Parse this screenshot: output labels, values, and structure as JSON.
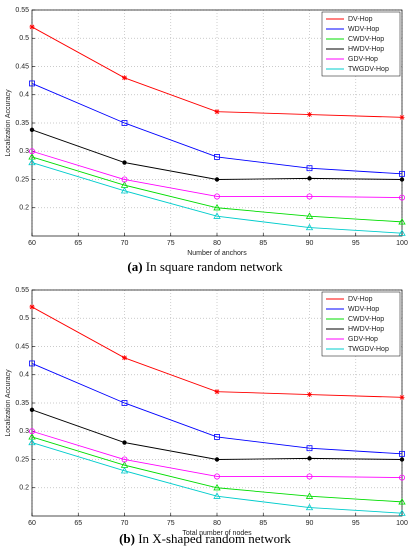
{
  "chart_data": [
    {
      "type": "line",
      "caption_label": "(a)",
      "caption": "In square random network",
      "x_label": "Number of anchors",
      "y_label": "Localization Accuracy",
      "x": [
        60,
        70,
        80,
        90,
        100
      ],
      "xlim": [
        60,
        100
      ],
      "xticks": [
        60,
        65,
        70,
        75,
        80,
        85,
        90,
        95,
        100
      ],
      "ylim": [
        0.15,
        0.55
      ],
      "yticks": [
        0.2,
        0.25,
        0.3,
        0.35,
        0.4,
        0.45,
        0.5,
        0.55
      ],
      "grid": true,
      "legend": "top-right",
      "series": [
        {
          "name": "DV-Hop",
          "color": "#ff0000",
          "marker": "star",
          "values": [
            0.52,
            0.43,
            0.37,
            0.365,
            0.36
          ]
        },
        {
          "name": "WDV-Hop",
          "color": "#0000ff",
          "marker": "square",
          "values": [
            0.42,
            0.35,
            0.29,
            0.27,
            0.26
          ]
        },
        {
          "name": "CWDV-Hop",
          "color": "#00dd00",
          "marker": "triangle",
          "values": [
            0.29,
            0.24,
            0.2,
            0.185,
            0.175
          ]
        },
        {
          "name": "HWDV-Hop",
          "color": "#000000",
          "marker": "dot",
          "values": [
            0.338,
            0.28,
            0.25,
            0.252,
            0.25
          ]
        },
        {
          "name": "GDV-Hop",
          "color": "#ff00ff",
          "marker": "circle",
          "values": [
            0.3,
            0.25,
            0.22,
            0.22,
            0.218
          ]
        },
        {
          "name": "TWGDV-Hop",
          "color": "#00cccc",
          "marker": "triangle",
          "values": [
            0.28,
            0.23,
            0.185,
            0.165,
            0.155
          ]
        }
      ]
    },
    {
      "type": "line",
      "caption_label": "(b)",
      "caption": "In X-shaped random network",
      "x_label": "Total number of nodes",
      "y_label": "Localization Accuracy",
      "x": [
        60,
        70,
        80,
        90,
        100
      ],
      "xlim": [
        60,
        100
      ],
      "xticks": [
        60,
        65,
        70,
        75,
        80,
        85,
        90,
        95,
        100
      ],
      "ylim": [
        0.15,
        0.55
      ],
      "yticks": [
        0.2,
        0.25,
        0.3,
        0.35,
        0.4,
        0.45,
        0.5,
        0.55
      ],
      "grid": true,
      "legend": "top-right",
      "series": [
        {
          "name": "DV-Hop",
          "color": "#ff0000",
          "marker": "star",
          "values": [
            0.52,
            0.43,
            0.37,
            0.365,
            0.36
          ]
        },
        {
          "name": "WDV-Hop",
          "color": "#0000ff",
          "marker": "square",
          "values": [
            0.42,
            0.35,
            0.29,
            0.27,
            0.26
          ]
        },
        {
          "name": "CWDV-Hop",
          "color": "#00dd00",
          "marker": "triangle",
          "values": [
            0.29,
            0.24,
            0.2,
            0.185,
            0.175
          ]
        },
        {
          "name": "HWDV-Hop",
          "color": "#000000",
          "marker": "dot",
          "values": [
            0.338,
            0.28,
            0.25,
            0.252,
            0.25
          ]
        },
        {
          "name": "GDV-Hop",
          "color": "#ff00ff",
          "marker": "circle",
          "values": [
            0.3,
            0.25,
            0.22,
            0.22,
            0.218
          ]
        },
        {
          "name": "TWGDV-Hop",
          "color": "#00cccc",
          "marker": "triangle",
          "values": [
            0.28,
            0.23,
            0.185,
            0.165,
            0.155
          ]
        }
      ]
    }
  ]
}
